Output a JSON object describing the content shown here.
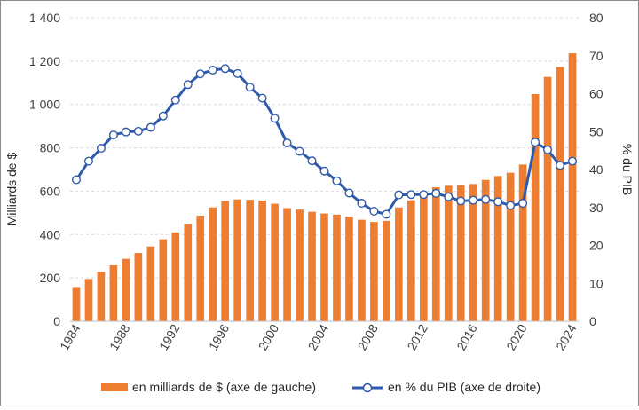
{
  "chart_data": {
    "type": "bar+line",
    "x": [
      1984,
      1985,
      1986,
      1987,
      1988,
      1989,
      1990,
      1991,
      1992,
      1993,
      1994,
      1995,
      1996,
      1997,
      1998,
      1999,
      2000,
      2001,
      2002,
      2003,
      2004,
      2005,
      2006,
      2007,
      2008,
      2009,
      2010,
      2011,
      2012,
      2013,
      2014,
      2015,
      2016,
      2017,
      2018,
      2019,
      2020,
      2021,
      2022,
      2023,
      2024
    ],
    "x_tick_labels": [
      "1984",
      "1988",
      "1992",
      "1996",
      "2000",
      "2004",
      "2008",
      "2012",
      "2016",
      "2020",
      "2024"
    ],
    "series": [
      {
        "name": "en milliards de $ (axe de gauche)",
        "type": "bar",
        "axis": "left",
        "color": "#ED7D31",
        "values": [
          158,
          195,
          228,
          258,
          288,
          315,
          345,
          378,
          410,
          450,
          487,
          525,
          555,
          562,
          560,
          557,
          542,
          522,
          515,
          505,
          497,
          492,
          483,
          468,
          458,
          463,
          525,
          558,
          580,
          618,
          625,
          628,
          633,
          652,
          670,
          685,
          723,
          1048,
          1127,
          1173,
          1236
        ]
      },
      {
        "name": "en % du PIB (axe de droite)",
        "type": "line",
        "axis": "right",
        "color": "#2E5AAC",
        "values": [
          37.3,
          42.2,
          45.6,
          49.1,
          49.9,
          50.1,
          51.1,
          54.1,
          58.3,
          62.4,
          65.2,
          66.2,
          66.6,
          65.3,
          61.7,
          58.8,
          53.5,
          47.0,
          44.8,
          42.3,
          39.6,
          37.0,
          33.8,
          31.1,
          29.0,
          28.2,
          33.3,
          33.4,
          33.4,
          33.7,
          32.8,
          31.7,
          31.9,
          32.1,
          31.5,
          30.5,
          31.1,
          47.2,
          45.2,
          41.1,
          42.2
        ]
      }
    ],
    "y_left": {
      "title": "Milliards de $",
      "ticks": [
        "0",
        "200",
        "400",
        "600",
        "800",
        "1 000",
        "1 200",
        "1 400"
      ],
      "range": [
        0,
        1400
      ],
      "step": 200
    },
    "y_right": {
      "title": "% du PIB",
      "ticks": [
        "0",
        "10",
        "20",
        "30",
        "40",
        "50",
        "60",
        "70",
        "80"
      ],
      "range": [
        0,
        80
      ],
      "step": 10
    },
    "grid": true,
    "legend_position": "bottom"
  }
}
